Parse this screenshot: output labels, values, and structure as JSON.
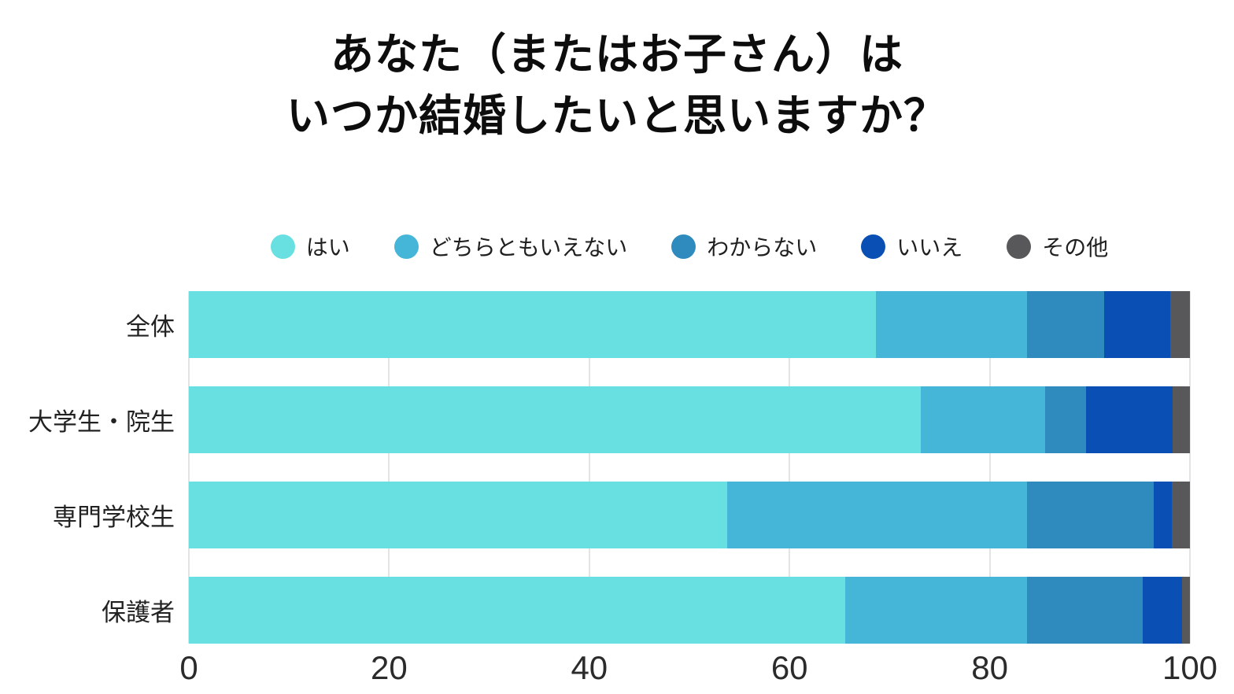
{
  "title": {
    "line1": "あなた（またはお子さん）は",
    "line2": "いつか結婚したいと思いますか？"
  },
  "chart_data": {
    "type": "bar",
    "orientation": "horizontal",
    "stacked": true,
    "title": "あなた（またはお子さん）は いつか結婚したいと思いますか？",
    "categories": [
      "全体",
      "大学生・院生",
      "専門学校生",
      "保護者"
    ],
    "series": [
      {
        "name": "はい",
        "color": "#68DFE1",
        "values": [
          68.6,
          73.1,
          53.8,
          65.6
        ]
      },
      {
        "name": "どちらともいえない",
        "color": "#45B6D7",
        "values": [
          15.1,
          12.4,
          29.9,
          18.1
        ]
      },
      {
        "name": "わからない",
        "color": "#2F8BBE",
        "values": [
          7.7,
          4.1,
          12.7,
          11.6
        ]
      },
      {
        "name": "いいえ",
        "color": "#0A4FB4",
        "values": [
          6.6,
          8.7,
          1.8,
          3.9
        ]
      },
      {
        "name": "その他",
        "color": "#58585A",
        "values": [
          2.0,
          1.7,
          1.8,
          0.8
        ]
      }
    ],
    "x_axis": {
      "ticks": [
        0,
        20,
        40,
        60,
        80,
        100
      ],
      "range": [
        0,
        100
      ],
      "unit": "%"
    },
    "legend_position": "top",
    "grid": true,
    "background": "#ffffff",
    "gridline_color": "#c9c9c9"
  }
}
